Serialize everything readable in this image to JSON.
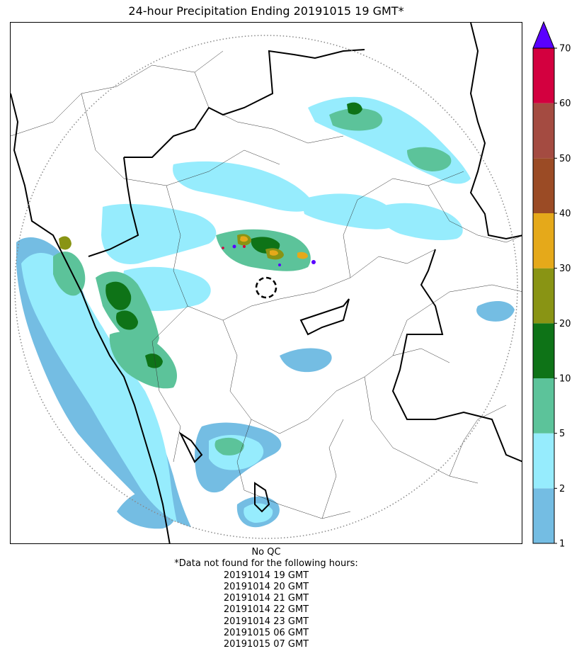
{
  "title": "24-hour Precipitation Ending 20191015 19 GMT*",
  "footer": {
    "qc_note": "No QC",
    "missing_header": "*Data not found for the following hours:",
    "missing_hours": [
      "20191014 19 GMT",
      "20191014 20 GMT",
      "20191014 21 GMT",
      "20191014 22 GMT",
      "20191014 23 GMT",
      "20191015 06 GMT",
      "20191015 07 GMT"
    ]
  },
  "colorbar": {
    "levels": [
      1,
      2,
      5,
      10,
      20,
      30,
      40,
      50,
      60,
      70
    ],
    "tick_labels": [
      "1",
      "2",
      "5",
      "10",
      "20",
      "30",
      "40",
      "50",
      "60",
      "70"
    ],
    "colors": [
      "#74bde3",
      "#96ecfd",
      "#5cc39a",
      "#0e7317",
      "#899414",
      "#e5a91a",
      "#9b4b25",
      "#a44b41",
      "#d3003f"
    ],
    "extend_max_color": "#5a00ff",
    "extend": "max"
  },
  "map": {
    "radar_range_ring": "dotted",
    "radar_site_marker": "dashed-circle",
    "boundaries": "state and district borders"
  }
}
